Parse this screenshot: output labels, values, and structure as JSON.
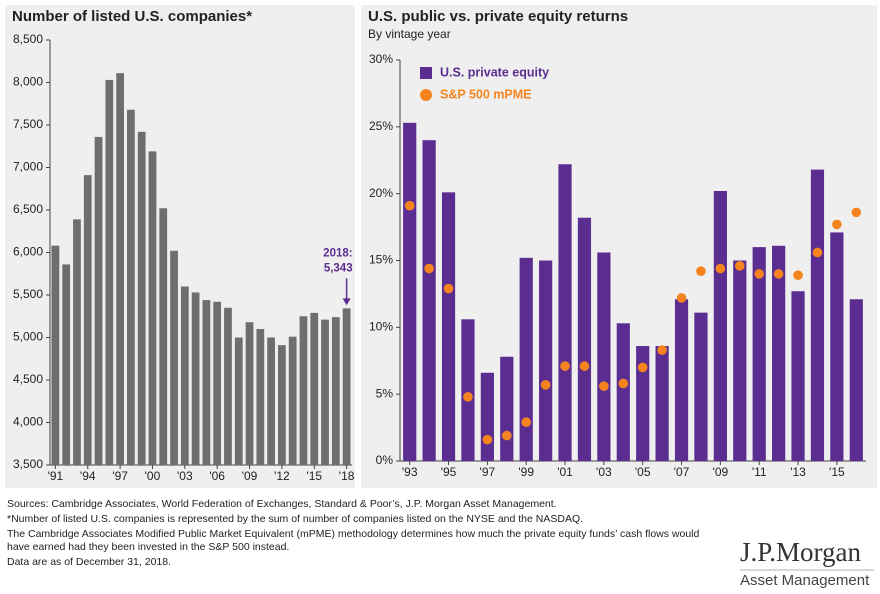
{
  "chart_data": [
    {
      "type": "bar",
      "title": "Number of listed U.S. companies*",
      "categories": [
        "'91",
        null,
        null,
        "'94",
        null,
        null,
        "'97",
        null,
        null,
        "'00",
        null,
        null,
        "'03",
        null,
        null,
        "'06",
        null,
        null,
        "'09",
        null,
        null,
        "'12",
        null,
        null,
        "'15",
        null,
        null,
        "'18"
      ],
      "values": [
        6080,
        5860,
        6390,
        6910,
        7360,
        8030,
        8110,
        7680,
        7420,
        7190,
        6520,
        6020,
        5600,
        5530,
        5440,
        5420,
        5350,
        5000,
        5180,
        5100,
        5000,
        4910,
        5010,
        5250,
        5290,
        5210,
        5240,
        5343
      ],
      "color": "#6e6e6e",
      "annotation": [
        "2018:",
        "5,343"
      ],
      "annotation_color": "#5c2d91",
      "ylim": [
        3500,
        8500
      ],
      "yticks": [
        {
          "value": 3500,
          "label": "3,500"
        },
        {
          "value": 4000,
          "label": "4,000"
        },
        {
          "value": 4500,
          "label": "4,500"
        },
        {
          "value": 5000,
          "label": "5,000"
        },
        {
          "value": 5500,
          "label": "5,500"
        },
        {
          "value": 6000,
          "label": "6,000"
        },
        {
          "value": 6500,
          "label": "6,500"
        },
        {
          "value": 7000,
          "label": "7,000"
        },
        {
          "value": 7500,
          "label": "7,500"
        },
        {
          "value": 8000,
          "label": "8,000"
        },
        {
          "value": 8500,
          "label": "8,500"
        }
      ]
    },
    {
      "type": "combo",
      "title": "U.S. public vs. private equity returns",
      "subtitle": "By vintage year",
      "categories": [
        "'93",
        null,
        "'95",
        null,
        "'97",
        null,
        "'99",
        null,
        "'01",
        null,
        "'03",
        null,
        "'05",
        null,
        "'07",
        null,
        "'09",
        null,
        "'11",
        null,
        "'13",
        null,
        "'15",
        null
      ],
      "series": [
        {
          "name": "U.S. private equity",
          "kind": "bar",
          "color": "#5c2d91",
          "values": [
            25.3,
            24.0,
            20.1,
            10.6,
            6.6,
            7.8,
            15.2,
            15.0,
            22.2,
            18.2,
            15.6,
            10.3,
            8.6,
            8.6,
            12.1,
            11.1,
            20.2,
            15.0,
            16.0,
            16.1,
            12.7,
            21.8,
            17.1,
            12.1
          ]
        },
        {
          "name": "S&P 500 mPME",
          "kind": "dot",
          "color": "#f5841f",
          "values": [
            19.1,
            14.4,
            12.9,
            4.8,
            1.6,
            1.9,
            2.9,
            5.7,
            7.1,
            7.1,
            5.6,
            5.8,
            7.0,
            8.3,
            12.2,
            14.2,
            14.4,
            14.6,
            14.0,
            14.0,
            13.9,
            15.6,
            17.7,
            18.6
          ]
        }
      ],
      "legend": "top-left",
      "ylim": [
        0,
        30
      ],
      "yticks": [
        {
          "value": 0,
          "label": "0%"
        },
        {
          "value": 5,
          "label": "5%"
        },
        {
          "value": 10,
          "label": "10%"
        },
        {
          "value": 15,
          "label": "15%"
        },
        {
          "value": 20,
          "label": "20%"
        },
        {
          "value": 25,
          "label": "25%"
        },
        {
          "value": 30,
          "label": "30%"
        }
      ]
    }
  ],
  "footer": [
    "Sources: Cambridge Associates, World Federation of Exchanges, Standard & Poor’s, J.P. Morgan Asset Management.",
    "*Number of listed U.S. companies is represented by the sum of number of companies listed on the NYSE and the NASDAQ.",
    "The Cambridge Associates Modified Public Market Equivalent (mPME) methodology determines how much the private equity funds’ cash flows would have earned had they been invested in the S&P 500 instead.",
    "Data are as of December 31, 2018."
  ],
  "logo": {
    "name": "J.P.Morgan",
    "tagline": "Asset Management"
  }
}
